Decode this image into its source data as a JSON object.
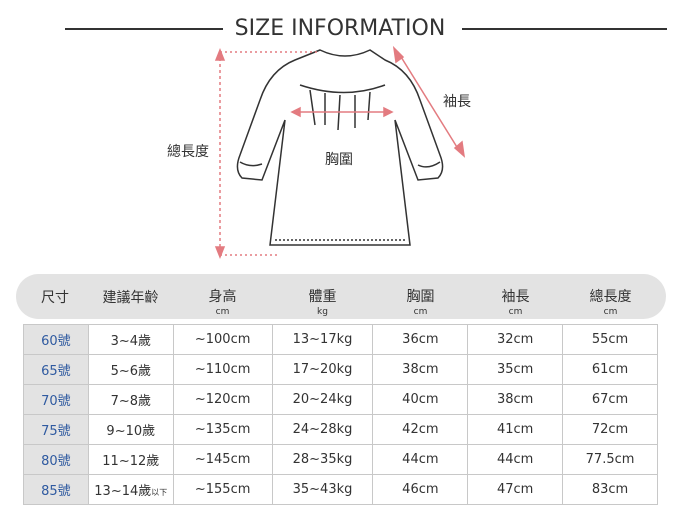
{
  "title": "SIZE INFORMATION",
  "diagram_labels": {
    "total_length": "總長度",
    "sleeve": "袖長",
    "chest": "胸圍"
  },
  "colors": {
    "arrow": "#e37b80",
    "size_text": "#2f5aa0",
    "header_bg": "#e3e3e3"
  },
  "table": {
    "headers": [
      {
        "main": "尺寸",
        "unit": ""
      },
      {
        "main": "建議年齡",
        "unit": ""
      },
      {
        "main": "身高",
        "unit": "cm"
      },
      {
        "main": "體重",
        "unit": "kg"
      },
      {
        "main": "胸圍",
        "unit": "cm"
      },
      {
        "main": "袖長",
        "unit": "cm"
      },
      {
        "main": "總長度",
        "unit": "cm"
      }
    ],
    "rows": [
      [
        "60號",
        "3~4歲",
        "~100cm",
        "13~17kg",
        "36cm",
        "32cm",
        "55cm"
      ],
      [
        "65號",
        "5~6歲",
        "~110cm",
        "17~20kg",
        "38cm",
        "35cm",
        "61cm"
      ],
      [
        "70號",
        "7~8歲",
        "~120cm",
        "20~24kg",
        "40cm",
        "38cm",
        "67cm"
      ],
      [
        "75號",
        "9~10歲",
        "~135cm",
        "24~28kg",
        "42cm",
        "41cm",
        "72cm"
      ],
      [
        "80號",
        "11~12歲",
        "~145cm",
        "28~35kg",
        "44cm",
        "44cm",
        "77.5cm"
      ],
      [
        "85號",
        "13~14歲",
        "~155cm",
        "35~43kg",
        "46cm",
        "47cm",
        "83cm"
      ]
    ],
    "age_suffix_last": "以下"
  }
}
